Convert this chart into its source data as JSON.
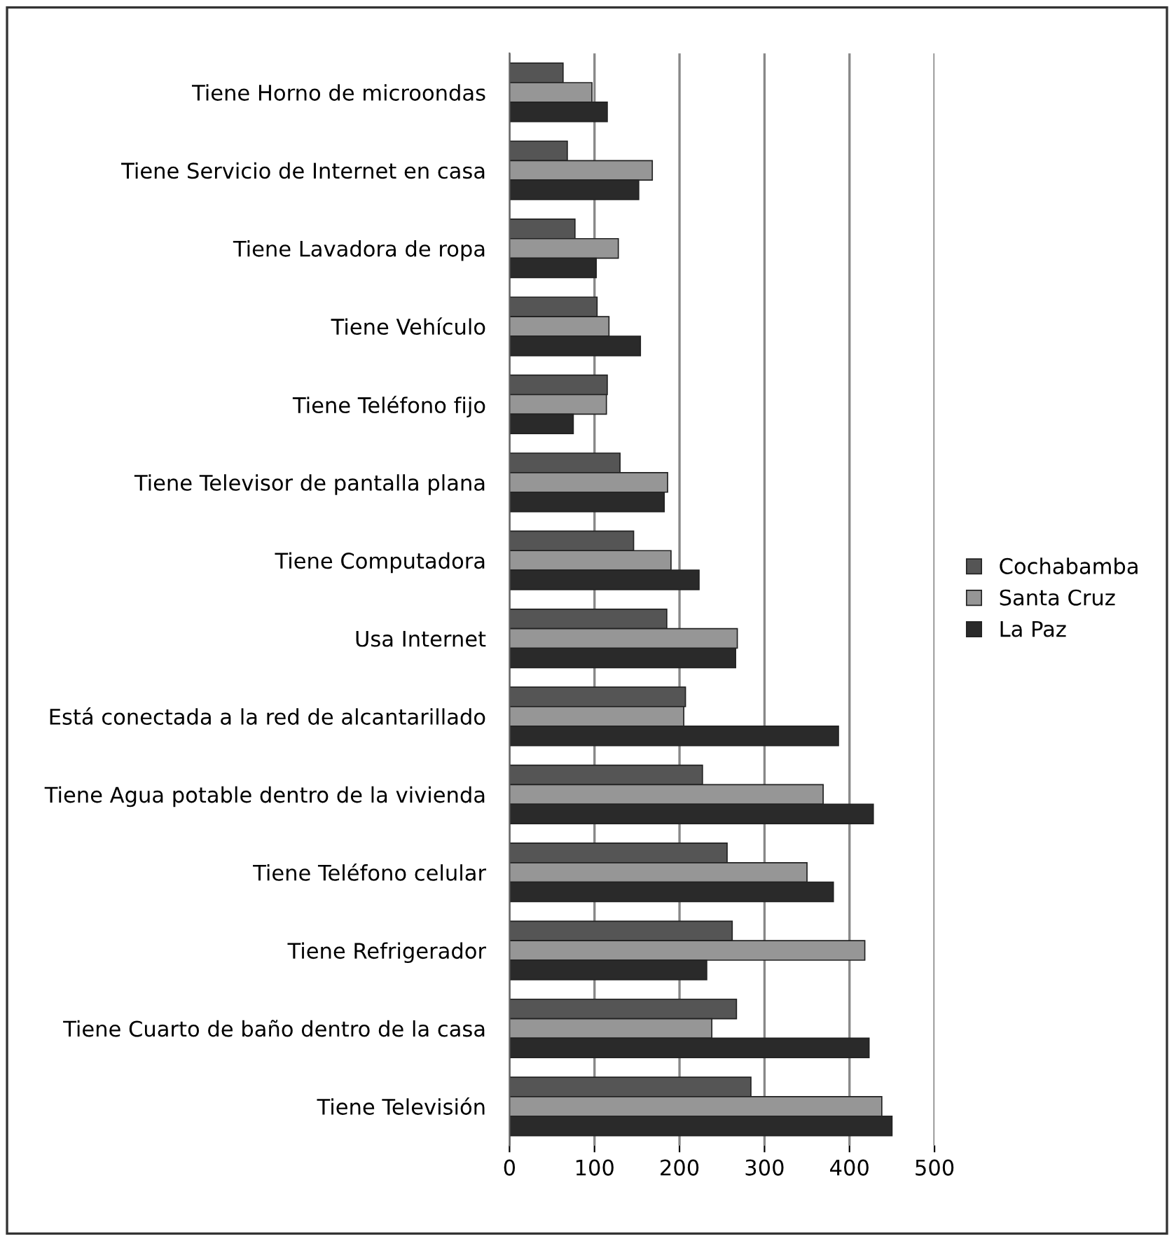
{
  "chart_data": {
    "type": "bar",
    "orientation": "horizontal",
    "categories": [
      "Tiene Horno de microondas",
      "Tiene Servicio de Internet en casa",
      "Tiene Lavadora de ropa",
      "Tiene Vehículo",
      "Tiene Teléfono fijo",
      "Tiene Televisor de pantalla plana",
      "Tiene Computadora",
      "Usa Internet",
      "Está conectada a la red de alcantarillado",
      "Tiene Agua potable dentro de la vivienda",
      "Tiene Teléfono celular",
      "Tiene Refrigerador",
      "Tiene Cuarto de baño dentro de la casa",
      "Tiene Televisión"
    ],
    "series": [
      {
        "name": "Cochabamba",
        "color": "#555555",
        "values": [
          63,
          68,
          77,
          103,
          115,
          130,
          146,
          185,
          207,
          227,
          256,
          262,
          267,
          284
        ]
      },
      {
        "name": "Santa Cruz",
        "color": "#969696",
        "values": [
          97,
          168,
          128,
          117,
          114,
          186,
          190,
          268,
          205,
          369,
          350,
          418,
          238,
          438
        ]
      },
      {
        "name": "La Paz",
        "color": "#2a2a2a",
        "values": [
          115,
          152,
          102,
          154,
          75,
          182,
          223,
          266,
          387,
          428,
          381,
          232,
          423,
          450
        ]
      }
    ],
    "xlim": [
      0,
      500
    ],
    "xticks": [
      0,
      100,
      200,
      300,
      400,
      500
    ],
    "grid": "x",
    "legend": "right"
  }
}
